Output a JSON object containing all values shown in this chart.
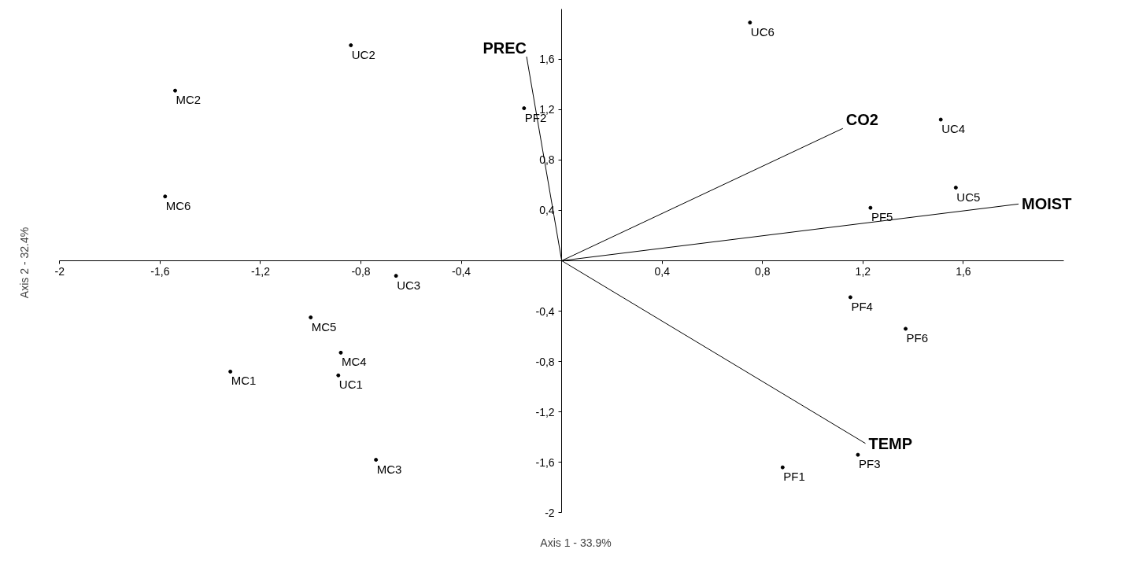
{
  "chart_data": {
    "type": "scatter",
    "xlabel": "Axis 1 - 33.9%",
    "ylabel": "Axis 2 - 32.4%",
    "xlim": [
      -2,
      2
    ],
    "ylim": [
      -2,
      2
    ],
    "xticks": [
      {
        "value": -2,
        "label": "-2"
      },
      {
        "value": -1.6,
        "label": "-1,6"
      },
      {
        "value": -1.2,
        "label": "-1,2"
      },
      {
        "value": -0.8,
        "label": "-0,8"
      },
      {
        "value": -0.4,
        "label": "-0,4"
      },
      {
        "value": 0.4,
        "label": "0,4"
      },
      {
        "value": 0.8,
        "label": "0,8"
      },
      {
        "value": 1.2,
        "label": "1,2"
      },
      {
        "value": 1.6,
        "label": "1,6"
      }
    ],
    "yticks": [
      {
        "value": -2,
        "label": "-2"
      },
      {
        "value": -1.6,
        "label": "-1,6"
      },
      {
        "value": -1.2,
        "label": "-1,2"
      },
      {
        "value": -0.8,
        "label": "-0,8"
      },
      {
        "value": -0.4,
        "label": "-0,4"
      },
      {
        "value": 0.4,
        "label": "0,4"
      },
      {
        "value": 0.8,
        "label": "0,8"
      },
      {
        "value": 1.2,
        "label": "1,2"
      },
      {
        "value": 1.6,
        "label": "1,6"
      }
    ],
    "grid": false,
    "series": [
      {
        "color": "#000000",
        "marker": "circle",
        "x": [
          -0.84,
          -1.54,
          -1.58,
          -0.15,
          0.75,
          1.51,
          1.57,
          1.23,
          -0.66,
          -1.0,
          -0.88,
          -1.32,
          -0.89,
          -0.74,
          1.15,
          1.37,
          1.18,
          0.88
        ],
        "values": [
          1.71,
          1.35,
          0.51,
          1.21,
          1.89,
          1.12,
          0.58,
          0.42,
          -0.12,
          -0.45,
          -0.73,
          -0.88,
          -0.91,
          -1.58,
          -0.29,
          -0.54,
          -1.54,
          -1.64
        ]
      },
      {
        "type": "line",
        "name": "PREC",
        "color": "#000000",
        "marker": "none",
        "line_style": "solid",
        "x": [
          0,
          -0.14
        ],
        "values": [
          0,
          1.62
        ]
      },
      {
        "type": "line",
        "name": "CO2",
        "color": "#000000",
        "marker": "none",
        "line_style": "solid",
        "x": [
          0,
          1.12
        ],
        "values": [
          0,
          1.05
        ]
      },
      {
        "type": "line",
        "name": "MOIST",
        "color": "#000000",
        "marker": "none",
        "line_style": "solid",
        "x": [
          0,
          1.82
        ],
        "values": [
          0,
          0.45
        ]
      },
      {
        "type": "line",
        "name": "TEMP",
        "color": "#000000",
        "marker": "none",
        "line_style": "solid",
        "x": [
          0,
          1.21
        ],
        "values": [
          0,
          -1.45
        ]
      }
    ],
    "annotations": [
      {
        "text": "UC2",
        "x": -0.84,
        "y": 1.71
      },
      {
        "text": "MC2",
        "x": -1.54,
        "y": 1.35
      },
      {
        "text": "MC6",
        "x": -1.58,
        "y": 0.51
      },
      {
        "text": "PF2",
        "x": -0.15,
        "y": 1.21
      },
      {
        "text": "UC6",
        "x": 0.75,
        "y": 1.89
      },
      {
        "text": "UC4",
        "x": 1.51,
        "y": 1.12
      },
      {
        "text": "UC5",
        "x": 1.57,
        "y": 0.58
      },
      {
        "text": "PF5",
        "x": 1.23,
        "y": 0.42
      },
      {
        "text": "UC3",
        "x": -0.66,
        "y": -0.12
      },
      {
        "text": "MC5",
        "x": -1.0,
        "y": -0.45
      },
      {
        "text": "MC4",
        "x": -0.88,
        "y": -0.73
      },
      {
        "text": "MC1",
        "x": -1.32,
        "y": -0.88
      },
      {
        "text": "UC1",
        "x": -0.89,
        "y": -0.91
      },
      {
        "text": "MC3",
        "x": -0.74,
        "y": -1.58
      },
      {
        "text": "PF4",
        "x": 1.15,
        "y": -0.29
      },
      {
        "text": "PF6",
        "x": 1.37,
        "y": -0.54
      },
      {
        "text": "PF3",
        "x": 1.18,
        "y": -1.54
      },
      {
        "text": "PF1",
        "x": 0.88,
        "y": -1.64
      }
    ]
  }
}
